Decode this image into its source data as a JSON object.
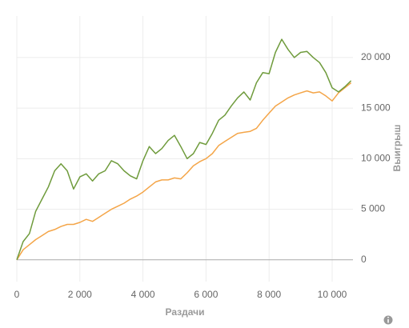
{
  "chart_data": {
    "type": "line",
    "x_label": "Раздачи",
    "y_label": "Выигрыш",
    "x": [
      0,
      200,
      400,
      600,
      800,
      1000,
      1200,
      1400,
      1600,
      1800,
      2000,
      2200,
      2400,
      2600,
      2800,
      3000,
      3200,
      3400,
      3600,
      3800,
      4000,
      4200,
      4400,
      4600,
      4800,
      5000,
      5200,
      5400,
      5600,
      5800,
      6000,
      6200,
      6400,
      6600,
      6800,
      7000,
      7200,
      7400,
      7600,
      7800,
      8000,
      8200,
      8400,
      8600,
      8800,
      9000,
      9200,
      9400,
      9600,
      9800,
      10000,
      10200,
      10400,
      10600
    ],
    "series": [
      {
        "color": "#6f9b3c",
        "values": [
          0,
          1800,
          2600,
          4800,
          6000,
          7200,
          8800,
          9500,
          8800,
          7000,
          8200,
          8500,
          7800,
          8500,
          8800,
          9800,
          9500,
          8800,
          8300,
          8000,
          9800,
          11200,
          10500,
          11000,
          11800,
          12300,
          11200,
          10000,
          10500,
          11600,
          11400,
          12500,
          13800,
          14300,
          15200,
          16000,
          16600,
          15800,
          17500,
          18500,
          18400,
          20500,
          21800,
          20800,
          20000,
          20500,
          20600,
          20000,
          19500,
          18500,
          17000,
          16600,
          17100,
          17700
        ]
      },
      {
        "color": "#f4a548",
        "values": [
          0,
          1000,
          1500,
          2000,
          2400,
          2800,
          3000,
          3300,
          3500,
          3500,
          3700,
          4000,
          3800,
          4200,
          4600,
          5000,
          5300,
          5600,
          6000,
          6300,
          6700,
          7200,
          7700,
          7900,
          7900,
          8100,
          8000,
          8600,
          9300,
          9700,
          10000,
          10500,
          11300,
          11700,
          12100,
          12500,
          12600,
          12700,
          13000,
          13800,
          14500,
          15200,
          15600,
          16000,
          16300,
          16500,
          16700,
          16500,
          16600,
          16200,
          15700,
          16500,
          17000,
          17500
        ]
      }
    ],
    "xlim": [
      0,
      10660
    ],
    "ylim": [
      -2150,
      24100
    ],
    "xticks": [
      0,
      {
        "value": 2000,
        "label": "2 000"
      },
      {
        "value": 4000,
        "label": "4 000"
      },
      {
        "value": 6000,
        "label": "6 000"
      },
      {
        "value": 8000,
        "label": "8 000"
      },
      {
        "value": 10000,
        "label": "10 000"
      }
    ],
    "yticks": [
      0,
      {
        "value": 5000,
        "label": "5 000"
      },
      {
        "value": 10000,
        "label": "10 000"
      },
      {
        "value": 15000,
        "label": "15 000"
      },
      {
        "value": 20000,
        "label": "20 000"
      }
    ],
    "grid": true
  }
}
